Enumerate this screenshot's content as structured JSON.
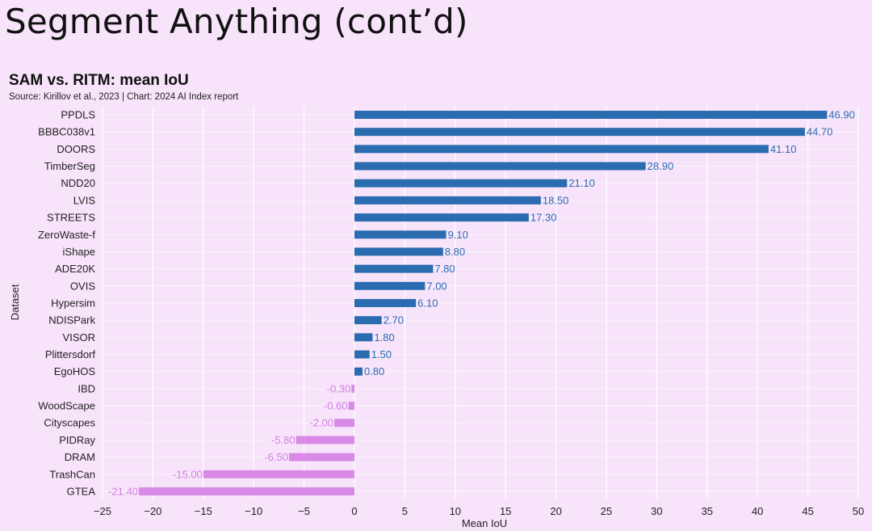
{
  "slide": {
    "title": "Segment Anything (cont’d)"
  },
  "chart_data": {
    "type": "bar",
    "orientation": "horizontal",
    "title": "SAM vs. RITM: mean IoU",
    "source": "Source: Kirillov et al., 2023 | Chart: 2024 AI Index report",
    "xlabel": "Mean IoU",
    "ylabel": "Dataset",
    "xlim": [
      -25,
      50
    ],
    "xticks": [
      -25,
      -20,
      -15,
      -10,
      -5,
      0,
      5,
      10,
      15,
      20,
      25,
      30,
      35,
      40,
      45,
      50
    ],
    "grid": true,
    "colors": {
      "positive": "#2b6cb0",
      "negative": "#d88ae6",
      "positive_label": "#2b6cb0",
      "negative_label": "#cf7fe0",
      "grid": "#ffffff"
    },
    "categories": [
      "PPDLS",
      "BBBC038v1",
      "DOORS",
      "TimberSeg",
      "NDD20",
      "LVIS",
      "STREETS",
      "ZeroWaste-f",
      "iShape",
      "ADE20K",
      "OVIS",
      "Hypersim",
      "NDISPark",
      "VISOR",
      "Plittersdorf",
      "EgoHOS",
      "IBD",
      "WoodScape",
      "Cityscapes",
      "PIDRay",
      "DRAM",
      "TrashCan",
      "GTEA"
    ],
    "values": [
      46.9,
      44.7,
      41.1,
      28.9,
      21.1,
      18.5,
      17.3,
      9.1,
      8.8,
      7.8,
      7.0,
      6.1,
      2.7,
      1.8,
      1.5,
      0.8,
      -0.3,
      -0.6,
      -2.0,
      -5.8,
      -6.5,
      -15.0,
      -21.4
    ],
    "labels": [
      "46.90",
      "44.70",
      "41.10",
      "28.90",
      "21.10",
      "18.50",
      "17.30",
      "9.10",
      "8.80",
      "7.80",
      "7.00",
      "6.10",
      "2.70",
      "1.80",
      "1.50",
      "0.80",
      "-0.30",
      "-0.60",
      "-2.00",
      "-5.80",
      "-6.50",
      "-15.00",
      "-21.40"
    ]
  }
}
